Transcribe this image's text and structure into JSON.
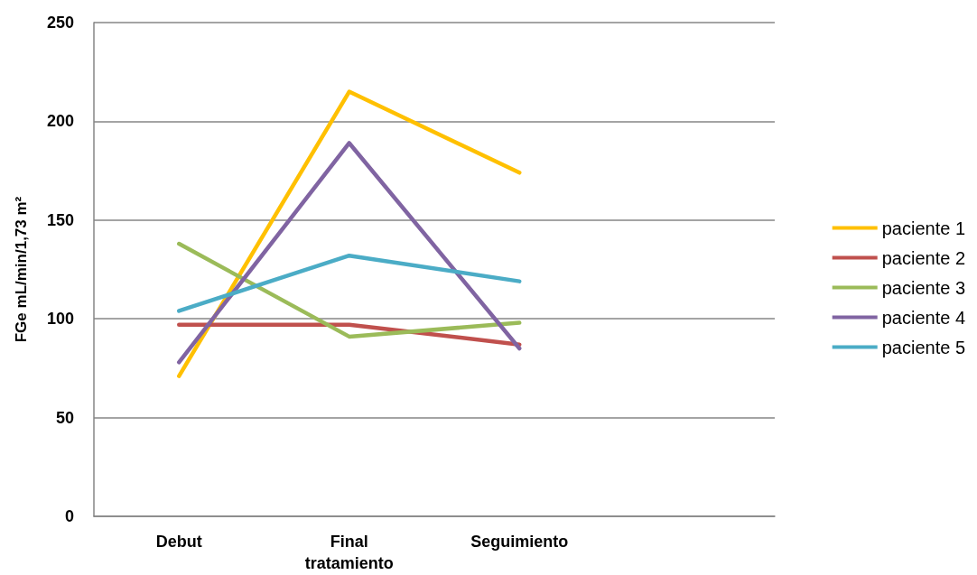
{
  "chart_data": {
    "type": "line",
    "ylabel": "FGe mL/min/1,73 m²",
    "categories": [
      "Debut",
      "Final\ntratamiento",
      "Seguimiento",
      null
    ],
    "series": [
      {
        "name": "paciente 1",
        "color": "#ffc000",
        "values": [
          71,
          215,
          174,
          null
        ]
      },
      {
        "name": "paciente 2",
        "color": "#c0504d",
        "values": [
          97,
          97,
          87,
          null
        ]
      },
      {
        "name": "paciente 3",
        "color": "#9bbb59",
        "values": [
          138,
          91,
          98,
          null
        ]
      },
      {
        "name": "paciente 4",
        "color": "#8064a2",
        "values": [
          78,
          189,
          85,
          null
        ]
      },
      {
        "name": "paciente 5",
        "color": "#4bacc6",
        "values": [
          104,
          132,
          119,
          null
        ]
      }
    ],
    "ylim": [
      0,
      250
    ],
    "yticks": [
      0,
      50,
      100,
      150,
      200,
      250
    ],
    "grid": "y",
    "legend": "right",
    "marker": "none",
    "line_style": "solid"
  }
}
